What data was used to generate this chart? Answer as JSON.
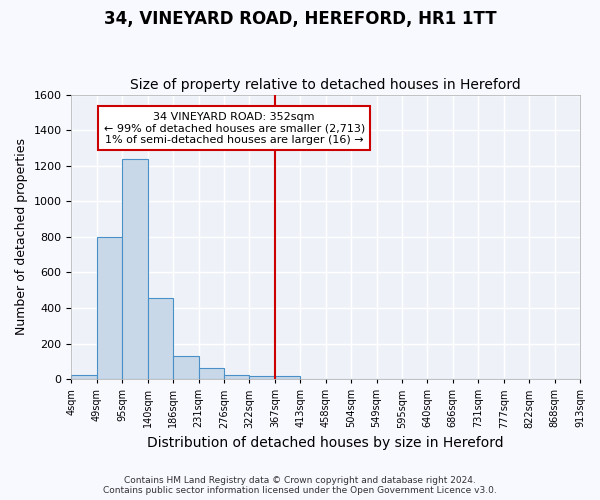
{
  "title": "34, VINEYARD ROAD, HEREFORD, HR1 1TT",
  "subtitle": "Size of property relative to detached houses in Hereford",
  "xlabel": "Distribution of detached houses by size in Hereford",
  "ylabel": "Number of detached properties",
  "annotation_line1": "34 VINEYARD ROAD: 352sqm",
  "annotation_line2": "← 99% of detached houses are smaller (2,713)",
  "annotation_line3": "1% of semi-detached houses are larger (16) →",
  "footer1": "Contains HM Land Registry data © Crown copyright and database right 2024.",
  "footer2": "Contains public sector information licensed under the Open Government Licence v3.0.",
  "bin_labels": [
    "4sqm",
    "49sqm",
    "95sqm",
    "140sqm",
    "186sqm",
    "231sqm",
    "276sqm",
    "322sqm",
    "367sqm",
    "413sqm",
    "458sqm",
    "504sqm",
    "549sqm",
    "595sqm",
    "640sqm",
    "686sqm",
    "731sqm",
    "777sqm",
    "822sqm",
    "868sqm",
    "913sqm"
  ],
  "bar_values": [
    25,
    800,
    1240,
    455,
    130,
    65,
    25,
    15,
    15,
    0,
    0,
    0,
    0,
    0,
    0,
    0,
    0,
    0,
    0,
    0
  ],
  "bar_color": "#c8d8e8",
  "bar_edge_color": "#4a90c8",
  "vline_x": 8.0,
  "vline_color": "#cc0000",
  "ylim": [
    0,
    1600
  ],
  "yticks": [
    0,
    200,
    400,
    600,
    800,
    1000,
    1200,
    1400,
    1600
  ],
  "bg_color": "#eef2f8",
  "grid_color": "#ffffff",
  "annotation_box_edge": "#cc0000",
  "title_fontsize": 12,
  "subtitle_fontsize": 10,
  "xlabel_fontsize": 10,
  "ylabel_fontsize": 9
}
